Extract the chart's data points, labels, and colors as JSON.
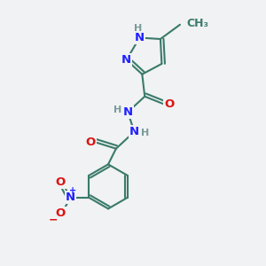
{
  "bg_color": "#f0f2f3",
  "bond_color": "#3a7a6a",
  "bond_width": 1.5,
  "atom_colors": {
    "N": "#2020ff",
    "O": "#dd1111",
    "H": "#7a9a9a"
  },
  "font_size": 9.5,
  "font_size_h": 8.0
}
